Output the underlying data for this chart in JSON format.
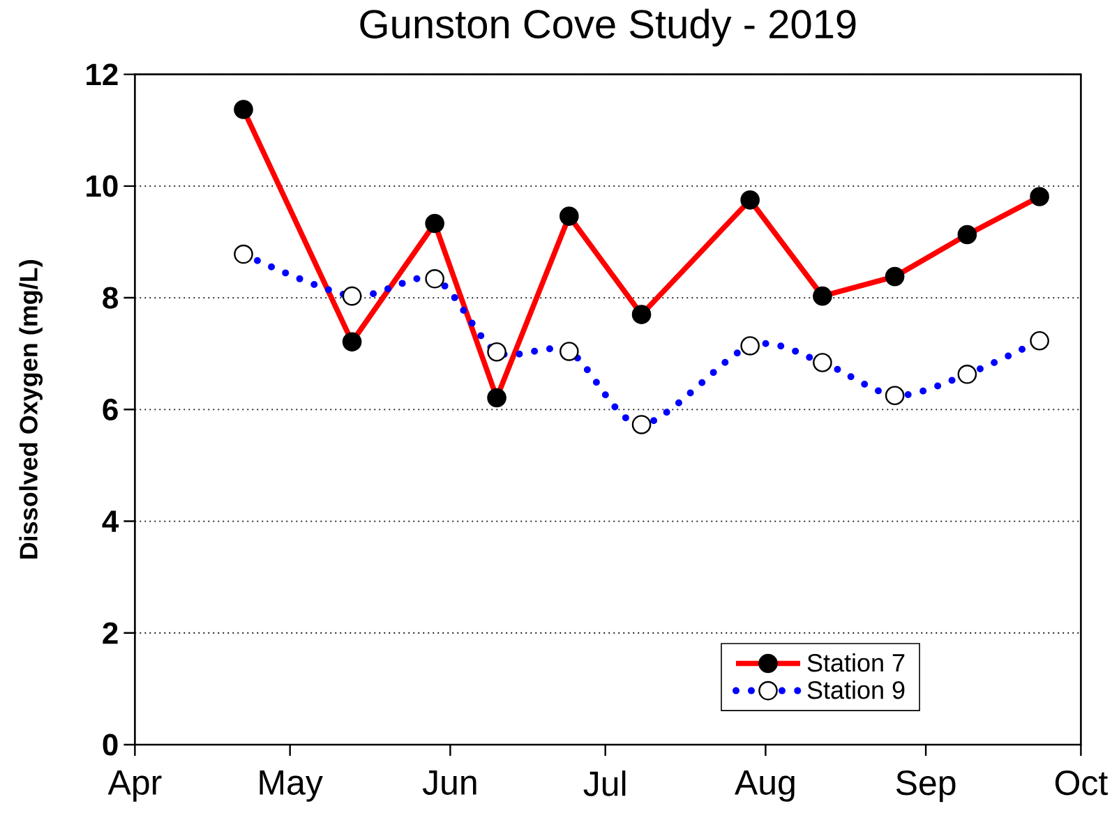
{
  "chart_data": {
    "type": "line",
    "title": "Gunston Cove Study - 2019",
    "ylabel": "Dissolved Oxygen (mg/L)",
    "x": [
      "2019-04-22",
      "2019-05-13",
      "2019-05-29",
      "2019-06-10",
      "2019-06-24",
      "2019-07-08",
      "2019-07-29",
      "2019-08-12",
      "2019-08-26",
      "2019-09-09",
      "2019-09-23"
    ],
    "series": [
      {
        "name": "Station 7",
        "color": "#ff0000",
        "line_style": "solid",
        "values": [
          11.37,
          7.21,
          9.33,
          6.21,
          9.46,
          7.7,
          9.75,
          8.03,
          8.38,
          9.13,
          9.81
        ]
      },
      {
        "name": "Station 9",
        "color": "#0000ff",
        "line_style": "dotted",
        "values": [
          8.78,
          8.03,
          8.34,
          7.03,
          7.04,
          5.73,
          7.14,
          6.84,
          6.25,
          6.63,
          7.23
        ]
      }
    ],
    "xlim": [
      "2019-04-01",
      "2019-10-01"
    ],
    "xticks": [
      {
        "value": "2019-04-01",
        "label": "Apr"
      },
      {
        "value": "2019-05-01",
        "label": "May"
      },
      {
        "value": "2019-06-01",
        "label": "Jun"
      },
      {
        "value": "2019-07-01",
        "label": "Jul"
      },
      {
        "value": "2019-08-01",
        "label": "Aug"
      },
      {
        "value": "2019-09-01",
        "label": "Sep"
      },
      {
        "value": "2019-10-01",
        "label": "Oct"
      }
    ],
    "ylim": [
      0,
      12
    ],
    "yticks": [
      0,
      2,
      4,
      6,
      8,
      10,
      12
    ],
    "grid": "y",
    "legend": "bottom right",
    "marker": "circle"
  }
}
